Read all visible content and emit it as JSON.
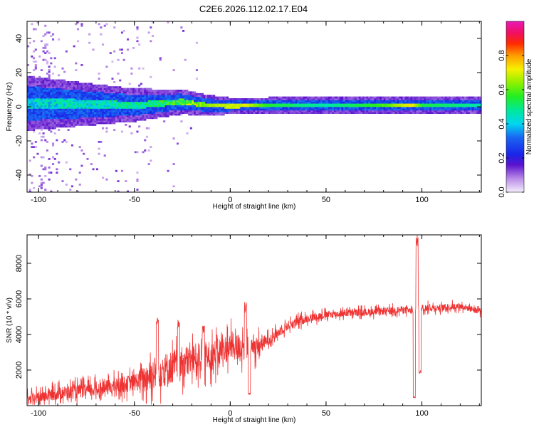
{
  "title": "C2E6.2026.112.02.17.E04",
  "chart_data": [
    {
      "type": "heatmap",
      "xlabel": "Height of straight line (km)",
      "ylabel": "Frequency (Hz)",
      "xlim": [
        -106,
        131
      ],
      "ylim": [
        -50,
        50
      ],
      "xticks": [
        -100,
        -50,
        0,
        50,
        100
      ],
      "yticks": [
        -40,
        -20,
        0,
        20,
        40
      ],
      "colorbar": {
        "label": "Normalized spectral amplitude",
        "range": [
          0,
          1
        ],
        "ticks": [
          "0.0",
          "0.2",
          "0.4",
          "0.6",
          "0.8"
        ],
        "colormap": "rainbow (violet-blue-cyan-green-yellow-red-magenta)"
      },
      "band_center_hz": [
        {
          "x": -100,
          "y": 2
        },
        {
          "x": -50,
          "y": 1
        },
        {
          "x": -25,
          "y": 3
        },
        {
          "x": -12,
          "y": 1
        },
        {
          "x": 0,
          "y": 0.5
        },
        {
          "x": 50,
          "y": 1
        },
        {
          "x": 100,
          "y": 1
        },
        {
          "x": 131,
          "y": 1
        }
      ],
      "band_halfwidth_hz": [
        {
          "x": -106,
          "w": 10
        },
        {
          "x": -50,
          "w": 6
        },
        {
          "x": -15,
          "w": 4
        },
        {
          "x": 0,
          "w": 3
        },
        {
          "x": 131,
          "w": 3
        }
      ],
      "band_peak_amplitude": [
        {
          "x": -106,
          "a": 0.45
        },
        {
          "x": -50,
          "a": 0.5
        },
        {
          "x": -25,
          "a": 0.6
        },
        {
          "x": -10,
          "a": 0.85
        },
        {
          "x": 8,
          "a": 0.9
        },
        {
          "x": 20,
          "a": 0.7
        },
        {
          "x": 50,
          "a": 0.6
        },
        {
          "x": 80,
          "a": 0.75
        },
        {
          "x": 95,
          "a": 0.95
        },
        {
          "x": 100,
          "a": 0.7
        },
        {
          "x": 131,
          "a": 0.6
        }
      ]
    },
    {
      "type": "line",
      "xlabel": "Height of straight line (km)",
      "ylabel": "SNR (10 * v/v)",
      "xlim": [
        -106,
        131
      ],
      "ylim": [
        0,
        9600
      ],
      "xticks": [
        -100,
        -50,
        0,
        50,
        100
      ],
      "yticks": [
        2000,
        4000,
        6000,
        8000
      ],
      "series": [
        {
          "color": "#ee3333",
          "trend": [
            {
              "x": -106,
              "y": 300
            },
            {
              "x": -90,
              "y": 700
            },
            {
              "x": -70,
              "y": 900
            },
            {
              "x": -50,
              "y": 1300
            },
            {
              "x": -40,
              "y": 1800
            },
            {
              "x": -30,
              "y": 2200
            },
            {
              "x": -20,
              "y": 2600
            },
            {
              "x": -10,
              "y": 2800
            },
            {
              "x": 0,
              "y": 3300
            },
            {
              "x": 5,
              "y": 3300
            },
            {
              "x": 10,
              "y": 3200
            },
            {
              "x": 15,
              "y": 3400
            },
            {
              "x": 20,
              "y": 3700
            },
            {
              "x": 25,
              "y": 4100
            },
            {
              "x": 30,
              "y": 4500
            },
            {
              "x": 40,
              "y": 4900
            },
            {
              "x": 50,
              "y": 5100
            },
            {
              "x": 60,
              "y": 5200
            },
            {
              "x": 80,
              "y": 5300
            },
            {
              "x": 90,
              "y": 5400
            },
            {
              "x": 95,
              "y": 5300
            },
            {
              "x": 100,
              "y": 5500
            },
            {
              "x": 110,
              "y": 5500
            },
            {
              "x": 120,
              "y": 5600
            },
            {
              "x": 131,
              "y": 5300
            }
          ],
          "noise_amplitude": [
            {
              "x": -106,
              "n": 500
            },
            {
              "x": -50,
              "n": 800
            },
            {
              "x": -40,
              "n": 1600
            },
            {
              "x": -10,
              "n": 1400
            },
            {
              "x": 10,
              "n": 1200
            },
            {
              "x": 20,
              "n": 500
            },
            {
              "x": 50,
              "n": 350
            },
            {
              "x": 131,
              "n": 300
            }
          ],
          "features": [
            {
              "x": -38,
              "y": 5000
            },
            {
              "x": -27,
              "y": 4800
            },
            {
              "x": -14,
              "y": 4500
            },
            {
              "x": 8,
              "y": 5800
            },
            {
              "x": 10,
              "y": 700
            },
            {
              "x": 96,
              "y": 500
            },
            {
              "x": 97.5,
              "y": 9600
            },
            {
              "x": 99,
              "y": 2000
            }
          ]
        }
      ]
    }
  ]
}
